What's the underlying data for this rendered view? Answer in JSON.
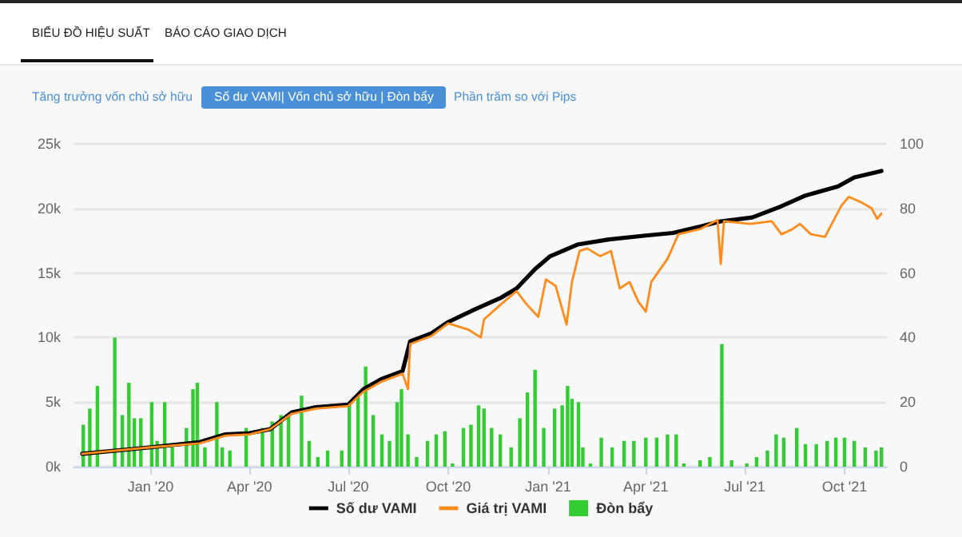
{
  "chart_data": {
    "type": "line",
    "annotations": [
      "BIỂU ĐỒ HIỆU SUẤT",
      "BÁO CÁO GIAO DỊCH",
      "Tăng trưởng vốn chủ sở hữu",
      "Số dư VAMI| Vốn chủ sở hữu | Đòn bẩy",
      "Phần trăm so với Pips"
    ],
    "xlim": [
      "2019-10-22",
      "2021-11-09"
    ],
    "xticks": [
      {
        "value": "2020-01-01",
        "label": "Jan '20"
      },
      {
        "value": "2020-04-01",
        "label": "Apr '20"
      },
      {
        "value": "2020-07-01",
        "label": "Jul '20"
      },
      {
        "value": "2020-10-01",
        "label": "Oct '20"
      },
      {
        "value": "2021-01-01",
        "label": "Jan '21"
      },
      {
        "value": "2021-04-01",
        "label": "Apr '21"
      },
      {
        "value": "2021-07-01",
        "label": "Jul '21"
      },
      {
        "value": "2021-10-01",
        "label": "Oct '21"
      }
    ],
    "ylim": [
      0,
      25000
    ],
    "yticks": [
      {
        "value": 0,
        "label": "0k"
      },
      {
        "value": 5000,
        "label": "5k"
      },
      {
        "value": 10000,
        "label": "10k"
      },
      {
        "value": 15000,
        "label": "15k"
      },
      {
        "value": 20000,
        "label": "20k"
      },
      {
        "value": 25000,
        "label": "25k"
      }
    ],
    "y2lim": [
      0,
      100
    ],
    "y2ticks": [
      0,
      20,
      40,
      60,
      80,
      100
    ],
    "grid": "y",
    "legend": "bottom",
    "marker": "none",
    "line_style": "solid",
    "series": [
      {
        "name": "Đòn bẩy",
        "type": "bar",
        "axis": "y2",
        "color": "#33cc33",
        "x": [
          "2019-10-31",
          "2019-11-06",
          "2019-11-13",
          "2019-11-29",
          "2019-12-06",
          "2019-12-12",
          "2019-12-17",
          "2019-12-23",
          "2020-01-02",
          "2020-01-07",
          "2020-01-14",
          "2020-01-21",
          "2020-02-03",
          "2020-02-09",
          "2020-02-13",
          "2020-02-20",
          "2020-03-02",
          "2020-03-07",
          "2020-03-14",
          "2020-03-29",
          "2020-04-13",
          "2020-04-22",
          "2020-04-30",
          "2020-05-07",
          "2020-05-19",
          "2020-05-26",
          "2020-06-03",
          "2020-06-12",
          "2020-06-25",
          "2020-07-02",
          "2020-07-10",
          "2020-07-17",
          "2020-07-24",
          "2020-08-01",
          "2020-08-08",
          "2020-08-15",
          "2020-08-19",
          "2020-08-25",
          "2020-09-02",
          "2020-09-12",
          "2020-09-20",
          "2020-09-28",
          "2020-10-05",
          "2020-10-15",
          "2020-10-22",
          "2020-10-29",
          "2020-11-03",
          "2020-11-10",
          "2020-11-18",
          "2020-11-28",
          "2020-12-06",
          "2020-12-13",
          "2020-12-20",
          "2020-12-28",
          "2021-01-07",
          "2021-01-14",
          "2021-01-19",
          "2021-01-23",
          "2021-01-29",
          "2021-02-02",
          "2021-02-09",
          "2021-02-19",
          "2021-03-01",
          "2021-03-12",
          "2021-03-21",
          "2021-04-01",
          "2021-04-11",
          "2021-04-21",
          "2021-04-29",
          "2021-05-06",
          "2021-05-21",
          "2021-05-30",
          "2021-06-10",
          "2021-06-19",
          "2021-07-03",
          "2021-07-12",
          "2021-07-22",
          "2021-07-30",
          "2021-08-06",
          "2021-08-18",
          "2021-08-26",
          "2021-09-05",
          "2021-09-15",
          "2021-09-23",
          "2021-10-01",
          "2021-10-10",
          "2021-10-20",
          "2021-10-30",
          "2021-11-04"
        ],
        "values": [
          13,
          18,
          25,
          40,
          16,
          26,
          15,
          15,
          20,
          8,
          20,
          6,
          12,
          24,
          26,
          6,
          20,
          6,
          5,
          12,
          12,
          14,
          16,
          16,
          22,
          8,
          3,
          5,
          5,
          20,
          22,
          31,
          16,
          10,
          8,
          20,
          24,
          10,
          3,
          8,
          10,
          11,
          1,
          12,
          13,
          19,
          18,
          12,
          10,
          6,
          15,
          23,
          30,
          12,
          18,
          19,
          25,
          21,
          20,
          6,
          1,
          9,
          6,
          8,
          8,
          9,
          9,
          10,
          10,
          1,
          2,
          3,
          38,
          2,
          1,
          3,
          5,
          10,
          9,
          12,
          7,
          7,
          8,
          9,
          9,
          8,
          6,
          5,
          6
        ]
      },
      {
        "name": "Số dư VAMI",
        "color": "#000000",
        "x": [
          "2019-10-30",
          "2020-01-01",
          "2020-02-15",
          "2020-03-10",
          "2020-04-01",
          "2020-04-20",
          "2020-05-10",
          "2020-06-01",
          "2020-07-01",
          "2020-07-15",
          "2020-08-01",
          "2020-08-20",
          "2020-08-27",
          "2020-09-15",
          "2020-10-01",
          "2020-10-26",
          "2020-11-19",
          "2020-12-03",
          "2020-12-20",
          "2021-01-03",
          "2021-01-28",
          "2021-02-26",
          "2021-04-01",
          "2021-04-26",
          "2021-05-21",
          "2021-06-09",
          "2021-07-08",
          "2021-08-02",
          "2021-08-26",
          "2021-09-25",
          "2021-10-10",
          "2021-11-04"
        ],
        "values": [
          1000,
          1500,
          1900,
          2500,
          2600,
          2900,
          4200,
          4600,
          4800,
          6000,
          6800,
          7400,
          9700,
          10300,
          11200,
          12200,
          13100,
          13800,
          15300,
          16300,
          17200,
          17600,
          17900,
          18100,
          18600,
          19000,
          19300,
          20100,
          21000,
          21700,
          22400,
          22900
        ]
      },
      {
        "name": "Giá trị VAMI",
        "color": "#ff8c1a",
        "x": [
          "2019-10-30",
          "2020-01-01",
          "2020-02-15",
          "2020-03-10",
          "2020-04-01",
          "2020-04-20",
          "2020-05-10",
          "2020-06-01",
          "2020-07-01",
          "2020-07-15",
          "2020-08-01",
          "2020-08-20",
          "2020-08-25",
          "2020-08-27",
          "2020-09-15",
          "2020-10-01",
          "2020-10-20",
          "2020-10-31",
          "2020-11-03",
          "2020-11-19",
          "2020-12-03",
          "2020-12-12",
          "2020-12-23",
          "2020-12-30",
          "2021-01-08",
          "2021-01-18",
          "2021-01-23",
          "2021-01-30",
          "2021-02-06",
          "2021-02-18",
          "2021-02-28",
          "2021-03-08",
          "2021-03-17",
          "2021-03-25",
          "2021-04-01",
          "2021-04-06",
          "2021-04-21",
          "2021-05-01",
          "2021-05-21",
          "2021-06-06",
          "2021-06-09",
          "2021-06-12",
          "2021-07-06",
          "2021-07-26",
          "2021-08-04",
          "2021-08-14",
          "2021-08-21",
          "2021-08-31",
          "2021-09-13",
          "2021-09-28",
          "2021-10-05",
          "2021-10-18",
          "2021-10-26",
          "2021-10-31",
          "2021-11-04"
        ],
        "values": [
          1000,
          1500,
          1800,
          2400,
          2500,
          2900,
          4100,
          4500,
          4700,
          5800,
          6600,
          7200,
          6000,
          9500,
          10100,
          11100,
          10600,
          10000,
          11400,
          12600,
          13600,
          12600,
          11600,
          14500,
          14000,
          11000,
          14300,
          16700,
          16900,
          16300,
          16700,
          13800,
          14300,
          12800,
          12000,
          14300,
          16100,
          18000,
          18400,
          19100,
          15700,
          19000,
          18800,
          19000,
          18000,
          18400,
          18800,
          18000,
          17800,
          20200,
          20900,
          20400,
          20000,
          19200,
          19600
        ]
      }
    ]
  }
}
